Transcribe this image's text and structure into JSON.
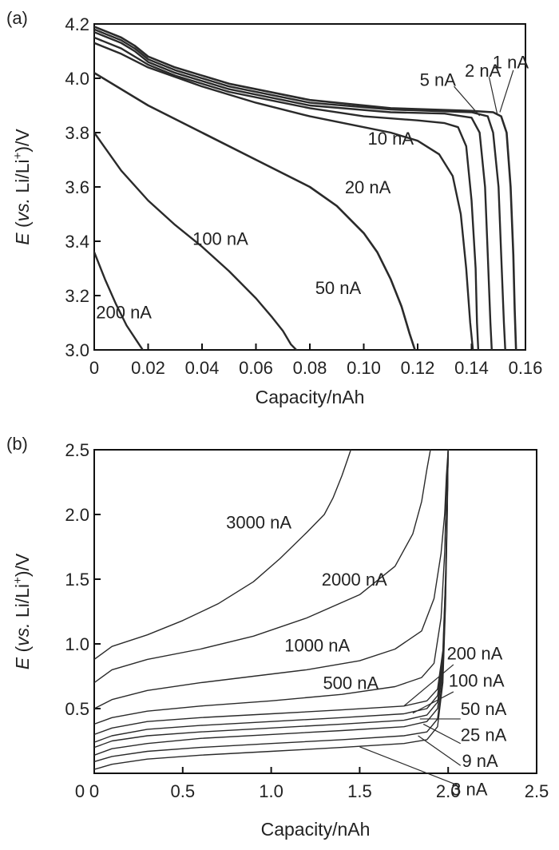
{
  "chart_data": [
    {
      "type": "line",
      "panel_label": "(a)",
      "xlabel": "Capacity/nAh",
      "ylabel_parts": {
        "italic": "E",
        "open": " (",
        "vs": "vs.",
        "mid": " Li/Li",
        "sup": "+",
        "close": ")/V"
      },
      "xlim": [
        0,
        0.16
      ],
      "ylim": [
        3.0,
        4.2
      ],
      "xticks": [
        0,
        0.02,
        0.04,
        0.06,
        0.08,
        0.1,
        0.12,
        0.14,
        0.16
      ],
      "xtick_labels": [
        "0",
        "0.02",
        "0.04",
        "0.06",
        "0.08",
        "0.10",
        "0.12",
        "0.14",
        "0.16"
      ],
      "yticks": [
        3.0,
        3.2,
        3.4,
        3.6,
        3.8,
        4.0,
        4.2
      ],
      "ytick_labels": [
        "3.0",
        "3.2",
        "3.4",
        "3.6",
        "3.8",
        "4.0",
        "4.2"
      ],
      "series": [
        {
          "name": "1 nA",
          "width": 2.6,
          "x": [
            0,
            0.005,
            0.01,
            0.015,
            0.02,
            0.03,
            0.05,
            0.08,
            0.11,
            0.14,
            0.148,
            0.151,
            0.153,
            0.1545,
            0.1555,
            0.156,
            0.1565
          ],
          "y": [
            4.19,
            4.17,
            4.15,
            4.12,
            4.08,
            4.04,
            3.98,
            3.92,
            3.89,
            3.88,
            3.875,
            3.86,
            3.8,
            3.6,
            3.35,
            3.15,
            3.0
          ]
        },
        {
          "name": "2 nA",
          "width": 2.4,
          "x": [
            0,
            0.005,
            0.01,
            0.015,
            0.02,
            0.03,
            0.05,
            0.08,
            0.11,
            0.14,
            0.146,
            0.148,
            0.15,
            0.151,
            0.152,
            0.1525
          ],
          "y": [
            4.18,
            4.16,
            4.14,
            4.11,
            4.07,
            4.03,
            3.97,
            3.91,
            3.885,
            3.875,
            3.86,
            3.8,
            3.6,
            3.35,
            3.1,
            3.0
          ]
        },
        {
          "name": "5 nA",
          "width": 2.4,
          "x": [
            0,
            0.005,
            0.01,
            0.015,
            0.02,
            0.03,
            0.05,
            0.08,
            0.11,
            0.13,
            0.14,
            0.143,
            0.145,
            0.146,
            0.147,
            0.1475
          ],
          "y": [
            4.17,
            4.15,
            4.13,
            4.1,
            4.06,
            4.02,
            3.96,
            3.9,
            3.875,
            3.87,
            3.855,
            3.8,
            3.6,
            3.35,
            3.1,
            3.0
          ]
        },
        {
          "name": "10 nA",
          "width": 2.4,
          "x": [
            0,
            0.01,
            0.02,
            0.03,
            0.05,
            0.08,
            0.1,
            0.12,
            0.13,
            0.135,
            0.138,
            0.14,
            0.1415,
            0.142,
            0.1425
          ],
          "y": [
            4.15,
            4.11,
            4.05,
            4.01,
            3.95,
            3.89,
            3.86,
            3.845,
            3.835,
            3.82,
            3.75,
            3.55,
            3.3,
            3.1,
            3.0
          ]
        },
        {
          "name": "20 nA",
          "width": 2.4,
          "x": [
            0,
            0.01,
            0.02,
            0.04,
            0.06,
            0.08,
            0.1,
            0.11,
            0.12,
            0.128,
            0.133,
            0.136,
            0.138,
            0.1395,
            0.1405
          ],
          "y": [
            4.13,
            4.09,
            4.04,
            3.97,
            3.91,
            3.86,
            3.82,
            3.8,
            3.77,
            3.72,
            3.64,
            3.5,
            3.3,
            3.1,
            3.0
          ]
        },
        {
          "name": "50 nA",
          "width": 2.6,
          "x": [
            0,
            0.02,
            0.04,
            0.06,
            0.08,
            0.09,
            0.1,
            0.105,
            0.11,
            0.114,
            0.117,
            0.119
          ],
          "y": [
            4.02,
            3.9,
            3.8,
            3.7,
            3.6,
            3.53,
            3.43,
            3.36,
            3.26,
            3.16,
            3.06,
            3.0
          ]
        },
        {
          "name": "100 nA",
          "width": 2.4,
          "x": [
            0,
            0.01,
            0.02,
            0.03,
            0.04,
            0.05,
            0.06,
            0.066,
            0.07,
            0.073,
            0.075
          ],
          "y": [
            3.8,
            3.66,
            3.55,
            3.46,
            3.38,
            3.29,
            3.19,
            3.12,
            3.07,
            3.02,
            3.0
          ]
        },
        {
          "name": "200 nA",
          "width": 2.4,
          "x": [
            0,
            0.004,
            0.008,
            0.012,
            0.016,
            0.018
          ],
          "y": [
            3.36,
            3.26,
            3.17,
            3.09,
            3.03,
            3.0
          ]
        }
      ],
      "labels": [
        {
          "text": "1 nA",
          "x": 0.1545,
          "y": 4.06
        },
        {
          "text": "2 nA",
          "x": 0.1442,
          "y": 4.03
        },
        {
          "text": "5 nA",
          "x": 0.1275,
          "y": 3.995
        },
        {
          "text": "10 nA",
          "x": 0.11,
          "y": 3.78
        },
        {
          "text": "20 nA",
          "x": 0.1015,
          "y": 3.6
        },
        {
          "text": "50 nA",
          "x": 0.0905,
          "y": 3.23
        },
        {
          "text": "100 nA",
          "x": 0.0468,
          "y": 3.41
        },
        {
          "text": "200 nA",
          "x": 0.011,
          "y": 3.14
        }
      ],
      "leaders": [
        {
          "x1": 0.1555,
          "y1": 4.03,
          "x2": 0.1505,
          "y2": 3.875
        },
        {
          "x1": 0.1465,
          "y1": 4.005,
          "x2": 0.1495,
          "y2": 3.87
        },
        {
          "x1": 0.1335,
          "y1": 3.97,
          "x2": 0.143,
          "y2": 3.862
        }
      ]
    },
    {
      "type": "line",
      "panel_label": "(b)",
      "xlabel": "Capacity/nAh",
      "ylabel_parts": {
        "italic": "E",
        "open": " (",
        "vs": "vs.",
        "mid": " Li/Li",
        "sup": "+",
        "close": ")/V"
      },
      "xlim": [
        0,
        2.5
      ],
      "ylim": [
        0,
        2.5
      ],
      "xticks": [
        0,
        0.5,
        1.0,
        1.5,
        2.0,
        2.5
      ],
      "xtick_labels": [
        "0",
        "0.5",
        "1.0",
        "1.5",
        "2.0",
        "2.5"
      ],
      "yticks": [
        0.5,
        1.0,
        1.5,
        2.0,
        2.5
      ],
      "ytick_labels": [
        "0.5",
        "1.0",
        "1.5",
        "2.0",
        "2.5"
      ],
      "origin_label": "0",
      "series": [
        {
          "name": "3000 nA",
          "width": 1.4,
          "x": [
            0,
            0.1,
            0.3,
            0.5,
            0.7,
            0.9,
            1.05,
            1.2,
            1.3,
            1.35,
            1.4,
            1.43,
            1.45
          ],
          "y": [
            0.88,
            0.98,
            1.07,
            1.18,
            1.31,
            1.48,
            1.66,
            1.86,
            2.0,
            2.13,
            2.3,
            2.42,
            2.5
          ]
        },
        {
          "name": "2000 nA",
          "width": 1.4,
          "x": [
            0,
            0.1,
            0.3,
            0.6,
            0.9,
            1.2,
            1.5,
            1.7,
            1.8,
            1.85,
            1.88,
            1.9
          ],
          "y": [
            0.7,
            0.8,
            0.88,
            0.96,
            1.06,
            1.2,
            1.38,
            1.6,
            1.85,
            2.1,
            2.35,
            2.5
          ]
        },
        {
          "name": "1000 nA",
          "width": 1.4,
          "x": [
            0,
            0.1,
            0.3,
            0.6,
            0.9,
            1.2,
            1.5,
            1.7,
            1.85,
            1.92,
            1.96,
            1.98,
            1.99,
            2.0
          ],
          "y": [
            0.5,
            0.57,
            0.64,
            0.7,
            0.75,
            0.8,
            0.87,
            0.96,
            1.1,
            1.35,
            1.7,
            2.0,
            2.3,
            2.5
          ]
        },
        {
          "name": "500 nA",
          "width": 1.4,
          "x": [
            0,
            0.1,
            0.3,
            0.6,
            1.0,
            1.4,
            1.7,
            1.85,
            1.92,
            1.96,
            1.98,
            1.99,
            2.0
          ],
          "y": [
            0.38,
            0.43,
            0.48,
            0.52,
            0.56,
            0.61,
            0.67,
            0.74,
            0.85,
            1.2,
            1.7,
            2.2,
            2.5
          ]
        },
        {
          "name": "200 nA",
          "width": 1.4,
          "x": [
            0,
            0.1,
            0.3,
            0.6,
            1.0,
            1.4,
            1.75,
            1.88,
            1.94,
            1.97,
            1.985,
            1.995,
            2.0
          ],
          "y": [
            0.3,
            0.35,
            0.4,
            0.43,
            0.46,
            0.49,
            0.52,
            0.56,
            0.65,
            0.95,
            1.5,
            2.1,
            2.5
          ]
        },
        {
          "name": "100 nA",
          "width": 1.4,
          "x": [
            0,
            0.1,
            0.3,
            0.6,
            1.0,
            1.4,
            1.75,
            1.88,
            1.94,
            1.97,
            1.985,
            1.995,
            2.0
          ],
          "y": [
            0.24,
            0.29,
            0.34,
            0.37,
            0.4,
            0.43,
            0.46,
            0.5,
            0.6,
            0.9,
            1.5,
            2.1,
            2.5
          ]
        },
        {
          "name": "50 nA",
          "width": 1.4,
          "x": [
            0,
            0.1,
            0.3,
            0.6,
            1.0,
            1.4,
            1.75,
            1.88,
            1.94,
            1.97,
            1.985,
            1.995,
            2.0
          ],
          "y": [
            0.2,
            0.25,
            0.29,
            0.32,
            0.35,
            0.38,
            0.41,
            0.45,
            0.55,
            0.85,
            1.45,
            2.1,
            2.5
          ]
        },
        {
          "name": "25 nA",
          "width": 1.4,
          "x": [
            0,
            0.1,
            0.3,
            0.6,
            1.0,
            1.4,
            1.75,
            1.88,
            1.94,
            1.97,
            1.985,
            1.995,
            2.0
          ],
          "y": [
            0.14,
            0.19,
            0.23,
            0.27,
            0.3,
            0.33,
            0.36,
            0.4,
            0.5,
            0.8,
            1.4,
            2.1,
            2.5
          ]
        },
        {
          "name": "9 nA",
          "width": 1.4,
          "x": [
            0,
            0.1,
            0.3,
            0.6,
            1.0,
            1.4,
            1.75,
            1.88,
            1.94,
            1.97,
            1.985,
            1.995,
            2.0
          ],
          "y": [
            0.09,
            0.13,
            0.17,
            0.2,
            0.23,
            0.26,
            0.29,
            0.32,
            0.42,
            0.75,
            1.35,
            2.05,
            2.5
          ]
        },
        {
          "name": "3 nA",
          "width": 1.4,
          "x": [
            0,
            0.1,
            0.3,
            0.6,
            1.0,
            1.4,
            1.75,
            1.88,
            1.94,
            1.97,
            1.985,
            1.995,
            2.0
          ],
          "y": [
            0.03,
            0.07,
            0.11,
            0.14,
            0.17,
            0.2,
            0.23,
            0.26,
            0.36,
            0.7,
            1.3,
            2.0,
            2.5
          ]
        }
      ],
      "labels": [
        {
          "text": "3000 nA",
          "x": 0.93,
          "y": 1.94
        },
        {
          "text": "2000 nA",
          "x": 1.47,
          "y": 1.5
        },
        {
          "text": "1000 nA",
          "x": 1.26,
          "y": 0.99
        },
        {
          "text": "500 nA",
          "x": 1.45,
          "y": 0.7
        },
        {
          "text": "200 nA",
          "x": 2.15,
          "y": 0.93
        },
        {
          "text": "100 nA",
          "x": 2.16,
          "y": 0.72
        },
        {
          "text": "50 nA",
          "x": 2.2,
          "y": 0.5
        },
        {
          "text": "25 nA",
          "x": 2.2,
          "y": 0.3
        },
        {
          "text": "9 nA",
          "x": 2.18,
          "y": 0.1
        },
        {
          "text": "3 nA",
          "x": 2.12,
          "y": -0.12
        }
      ],
      "leaders": [
        {
          "x1": 2.03,
          "y1": 0.84,
          "x2": 1.75,
          "y2": 0.52
        },
        {
          "x1": 2.03,
          "y1": 0.63,
          "x2": 1.8,
          "y2": 0.465
        },
        {
          "x1": 2.07,
          "y1": 0.42,
          "x2": 1.84,
          "y2": 0.42
        },
        {
          "x1": 2.07,
          "y1": 0.23,
          "x2": 1.86,
          "y2": 0.38
        },
        {
          "x1": 2.07,
          "y1": 0.06,
          "x2": 1.83,
          "y2": 0.29
        },
        {
          "x1": 2.05,
          "y1": -0.09,
          "x2": 1.5,
          "y2": 0.205
        }
      ]
    }
  ]
}
